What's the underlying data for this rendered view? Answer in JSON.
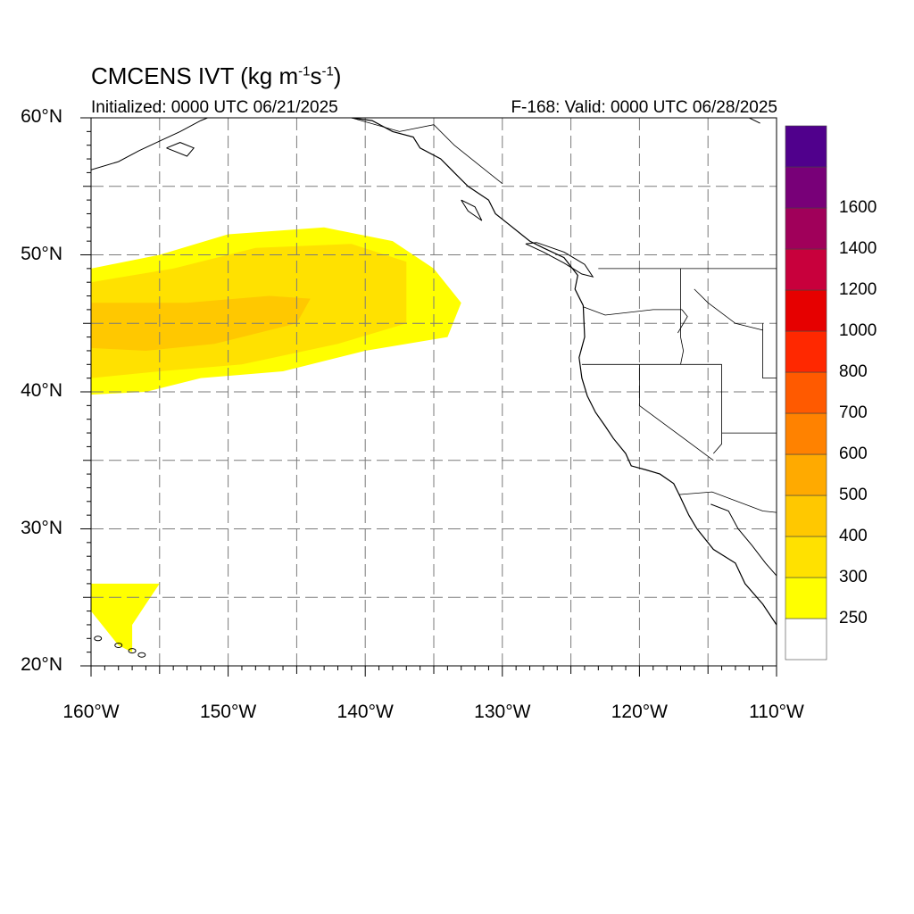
{
  "header": {
    "title_main": "CMCENS IVT (kg m",
    "title_sup1": "-1",
    "title_mid": "s",
    "title_sup2": "-1",
    "title_end": ")",
    "initialized": "Initialized: 0000 UTC 06/21/2025",
    "valid": "F-168: Valid: 0000 UTC 06/28/2025"
  },
  "map": {
    "lat_range": [
      20,
      60
    ],
    "lon_range": [
      -160,
      -110
    ],
    "lat_labels": [
      {
        "value": 60,
        "text": "60°N"
      },
      {
        "value": 50,
        "text": "50°N"
      },
      {
        "value": 40,
        "text": "40°N"
      },
      {
        "value": 30,
        "text": "30°N"
      },
      {
        "value": 20,
        "text": "20°N"
      }
    ],
    "lon_labels": [
      {
        "value": -160,
        "text": "160°W"
      },
      {
        "value": -150,
        "text": "150°W"
      },
      {
        "value": -140,
        "text": "140°W"
      },
      {
        "value": -130,
        "text": "130°W"
      },
      {
        "value": -120,
        "text": "120°W"
      },
      {
        "value": -110,
        "text": "110°W"
      }
    ],
    "grid_lines": "dashed, every 5 degrees"
  },
  "colorbar": {
    "colors": [
      "#ffffff",
      "#ffff00",
      "#ffe100",
      "#ffc800",
      "#ffaa00",
      "#ff8200",
      "#ff5a00",
      "#ff2800",
      "#e60000",
      "#c8003c",
      "#a0005a",
      "#780078",
      "#50008c"
    ],
    "labels": [
      "250",
      "300",
      "400",
      "500",
      "600",
      "700",
      "800",
      "1000",
      "1200",
      "1400",
      "1600"
    ]
  },
  "ivt_field": {
    "description_levels": [
      "250",
      "300",
      "400"
    ],
    "blobs": [
      {
        "level": 250,
        "region": [
          [
            -160,
            49
          ],
          [
            -155,
            50
          ],
          [
            -150,
            51.5
          ],
          [
            -143,
            52
          ],
          [
            -138,
            51
          ],
          [
            -135,
            49
          ],
          [
            -133,
            46.5
          ],
          [
            -134,
            44
          ],
          [
            -140,
            43
          ],
          [
            -146,
            41.5
          ],
          [
            -152,
            41
          ],
          [
            -156,
            40
          ],
          [
            -160,
            39.8
          ]
        ]
      },
      {
        "level": 300,
        "region": [
          [
            -160,
            48
          ],
          [
            -154,
            49
          ],
          [
            -148,
            50.5
          ],
          [
            -141,
            50.8
          ],
          [
            -137,
            49.5
          ],
          [
            -137,
            45
          ],
          [
            -142,
            43.5
          ],
          [
            -149,
            42
          ],
          [
            -155,
            41.5
          ],
          [
            -160,
            41
          ]
        ]
      },
      {
        "level": 400,
        "region": [
          [
            -160,
            46.5
          ],
          [
            -153,
            46.5
          ],
          [
            -147,
            47
          ],
          [
            -144,
            46.8
          ],
          [
            -145,
            45
          ],
          [
            -151,
            43.5
          ],
          [
            -156,
            43
          ],
          [
            -160,
            43.2
          ]
        ]
      },
      {
        "level": 250,
        "region": [
          [
            -160,
            26
          ],
          [
            -155,
            26
          ],
          [
            -156,
            24.5
          ],
          [
            -157,
            23
          ],
          [
            -157,
            21
          ],
          [
            -155,
            20
          ],
          [
            -158,
            21.5
          ],
          [
            -160,
            24
          ]
        ]
      }
    ]
  }
}
